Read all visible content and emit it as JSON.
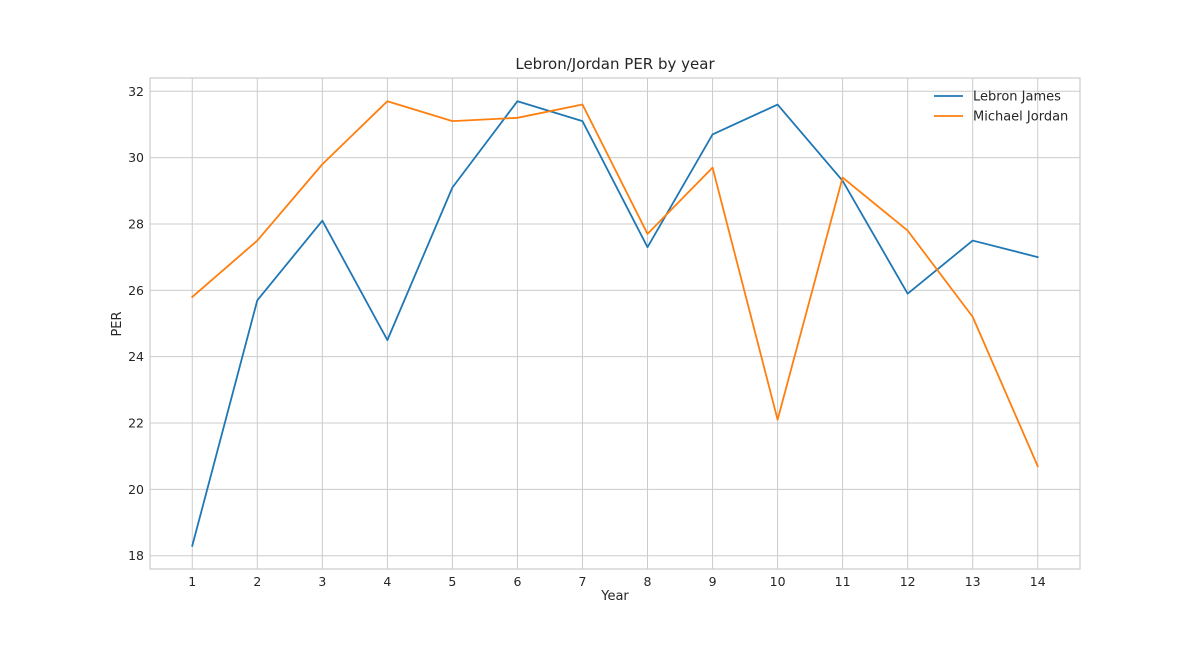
{
  "chart_data": {
    "type": "line",
    "title": "Lebron/Jordan PER by year",
    "xlabel": "Year",
    "ylabel": "PER",
    "x": [
      1,
      2,
      3,
      4,
      5,
      6,
      7,
      8,
      9,
      10,
      11,
      12,
      13,
      14
    ],
    "xticks": [
      "1",
      "2",
      "3",
      "4",
      "5",
      "6",
      "7",
      "8",
      "9",
      "10",
      "11",
      "12",
      "13",
      "14"
    ],
    "yticks": [
      "18",
      "20",
      "22",
      "24",
      "26",
      "28",
      "30",
      "32"
    ],
    "ylim": [
      17.6,
      32.4
    ],
    "xlim": [
      0.35,
      14.65
    ],
    "grid": true,
    "legend_position": "top-right",
    "series": [
      {
        "name": "Lebron James",
        "color": "#1f77b4",
        "values": [
          18.3,
          25.7,
          28.1,
          24.5,
          29.1,
          31.7,
          31.1,
          27.3,
          30.7,
          31.6,
          29.3,
          25.9,
          27.5,
          27.0
        ]
      },
      {
        "name": "Michael Jordan",
        "color": "#ff7f0e",
        "values": [
          25.8,
          27.5,
          29.8,
          31.7,
          31.1,
          31.2,
          31.6,
          27.7,
          29.7,
          22.1,
          29.4,
          27.8,
          25.2,
          20.7
        ]
      }
    ]
  }
}
